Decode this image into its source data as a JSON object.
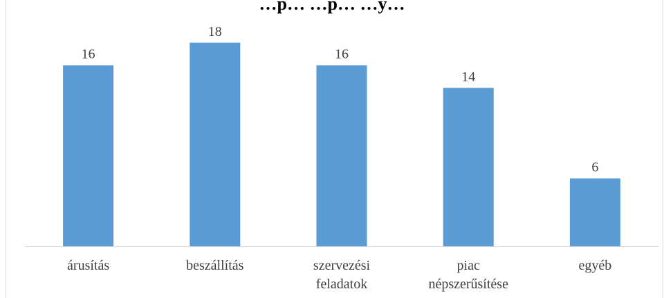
{
  "chart_data": {
    "type": "bar",
    "title": "…p… …p… …y…",
    "categories": [
      [
        "árusítás"
      ],
      [
        "beszállítás"
      ],
      [
        "szervezési",
        "feladatok"
      ],
      [
        "piac",
        "népszerűsítése"
      ],
      [
        "egyéb"
      ]
    ],
    "values": [
      16,
      18,
      16,
      14,
      6
    ],
    "ylim": [
      0,
      18
    ],
    "xlabel": "",
    "ylabel": "",
    "grid": false,
    "legend": "none",
    "colors": {
      "bar": "#5b9bd5",
      "axis": "#d9d9d9",
      "text": "#404040",
      "border": "#d9d9d9"
    }
  }
}
